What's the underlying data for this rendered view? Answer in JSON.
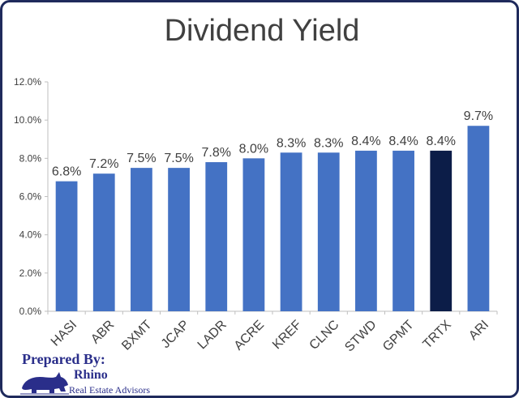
{
  "chart_data": {
    "type": "bar",
    "title": "Dividend Yield",
    "categories": [
      "HASI",
      "ABR",
      "BXMT",
      "JCAP",
      "LADR",
      "ACRE",
      "KREF",
      "CLNC",
      "STWD",
      "GPMT",
      "TRTX",
      "ARI"
    ],
    "values": [
      6.8,
      7.2,
      7.5,
      7.5,
      7.8,
      8.0,
      8.3,
      8.3,
      8.4,
      8.4,
      8.4,
      9.7
    ],
    "value_labels": [
      "6.8%",
      "7.2%",
      "7.5%",
      "7.5%",
      "7.8%",
      "8.0%",
      "8.3%",
      "8.3%",
      "8.4%",
      "8.4%",
      "8.4%",
      "9.7%"
    ],
    "yticks": [
      0,
      2,
      4,
      6,
      8,
      10,
      12
    ],
    "ytick_labels": [
      "0.0%",
      "2.0%",
      "4.0%",
      "6.0%",
      "8.0%",
      "10.0%",
      "12.0%"
    ],
    "ylim": [
      0,
      12
    ],
    "grid": false,
    "bar_color": "#4472c4",
    "highlight_category": "TRTX",
    "highlight_color": "#0c1d48",
    "xlabel": "",
    "ylabel": ""
  },
  "watermark": {
    "prepared_by": "Prepared By:",
    "brand": "Rhino",
    "tagline": "Real Estate Advisors",
    "color": "#2a2e8a"
  },
  "frame_color": "#1f2a5c"
}
